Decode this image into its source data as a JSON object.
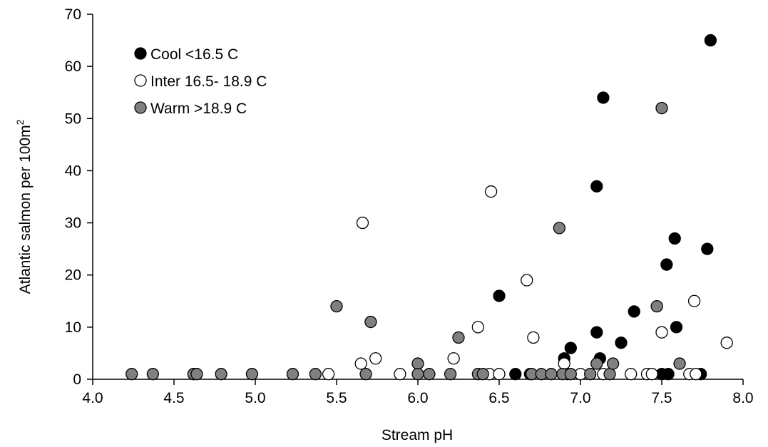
{
  "chart_data": {
    "type": "scatter",
    "xlabel": "Stream pH",
    "ylabel": "Atlantic salmon per 100m",
    "ylabel_sup": "2",
    "xlim": [
      4.0,
      8.0
    ],
    "ylim": [
      0,
      70
    ],
    "xticks": [
      "4.0",
      "4.5",
      "5.0",
      "5.5",
      "6.0",
      "6.5",
      "7.0",
      "7.5",
      "8.0"
    ],
    "yticks": [
      "0",
      "10",
      "20",
      "30",
      "40",
      "50",
      "60",
      "70"
    ],
    "grid": false,
    "legend_position": "top-left",
    "series": [
      {
        "name": "Cool <16.5 C",
        "color": "#000000",
        "points": [
          [
            6.5,
            16
          ],
          [
            6.6,
            1
          ],
          [
            6.69,
            1
          ],
          [
            6.9,
            4
          ],
          [
            6.94,
            6
          ],
          [
            7.1,
            37
          ],
          [
            7.1,
            9
          ],
          [
            7.12,
            4
          ],
          [
            7.14,
            54
          ],
          [
            7.25,
            7
          ],
          [
            7.33,
            13
          ],
          [
            7.5,
            1
          ],
          [
            7.53,
            22
          ],
          [
            7.54,
            1
          ],
          [
            7.58,
            27
          ],
          [
            7.59,
            10
          ],
          [
            7.74,
            1
          ],
          [
            7.78,
            25
          ],
          [
            7.8,
            65
          ]
        ]
      },
      {
        "name": "Inter 16.5- 18.9 C",
        "color": "#ffffff",
        "points": [
          [
            5.45,
            1
          ],
          [
            5.65,
            3
          ],
          [
            5.66,
            30
          ],
          [
            5.74,
            4
          ],
          [
            5.89,
            1
          ],
          [
            6.22,
            4
          ],
          [
            6.37,
            10
          ],
          [
            6.44,
            1
          ],
          [
            6.45,
            36
          ],
          [
            6.5,
            1
          ],
          [
            6.67,
            19
          ],
          [
            6.71,
            8
          ],
          [
            6.9,
            3
          ],
          [
            6.92,
            1
          ],
          [
            7.0,
            1
          ],
          [
            7.14,
            1
          ],
          [
            7.31,
            1
          ],
          [
            7.41,
            1
          ],
          [
            7.44,
            1
          ],
          [
            7.5,
            9
          ],
          [
            7.67,
            1
          ],
          [
            7.7,
            15
          ],
          [
            7.71,
            1
          ],
          [
            7.9,
            7
          ]
        ]
      },
      {
        "name": "Warm >18.9 C",
        "color": "#808080",
        "points": [
          [
            4.24,
            1
          ],
          [
            4.37,
            1
          ],
          [
            4.62,
            1
          ],
          [
            4.64,
            1
          ],
          [
            4.79,
            1
          ],
          [
            4.98,
            1
          ],
          [
            5.23,
            1
          ],
          [
            5.37,
            1
          ],
          [
            5.5,
            14
          ],
          [
            5.68,
            1
          ],
          [
            5.71,
            11
          ],
          [
            6.0,
            3
          ],
          [
            6.0,
            1
          ],
          [
            6.07,
            1
          ],
          [
            6.2,
            1
          ],
          [
            6.25,
            8
          ],
          [
            6.37,
            1
          ],
          [
            6.4,
            1
          ],
          [
            6.7,
            1
          ],
          [
            6.76,
            1
          ],
          [
            6.82,
            1
          ],
          [
            6.87,
            29
          ],
          [
            6.89,
            1
          ],
          [
            6.94,
            1
          ],
          [
            7.06,
            1
          ],
          [
            7.1,
            3
          ],
          [
            7.18,
            1
          ],
          [
            7.2,
            3
          ],
          [
            7.47,
            14
          ],
          [
            7.5,
            52
          ],
          [
            7.61,
            3
          ]
        ]
      }
    ]
  }
}
